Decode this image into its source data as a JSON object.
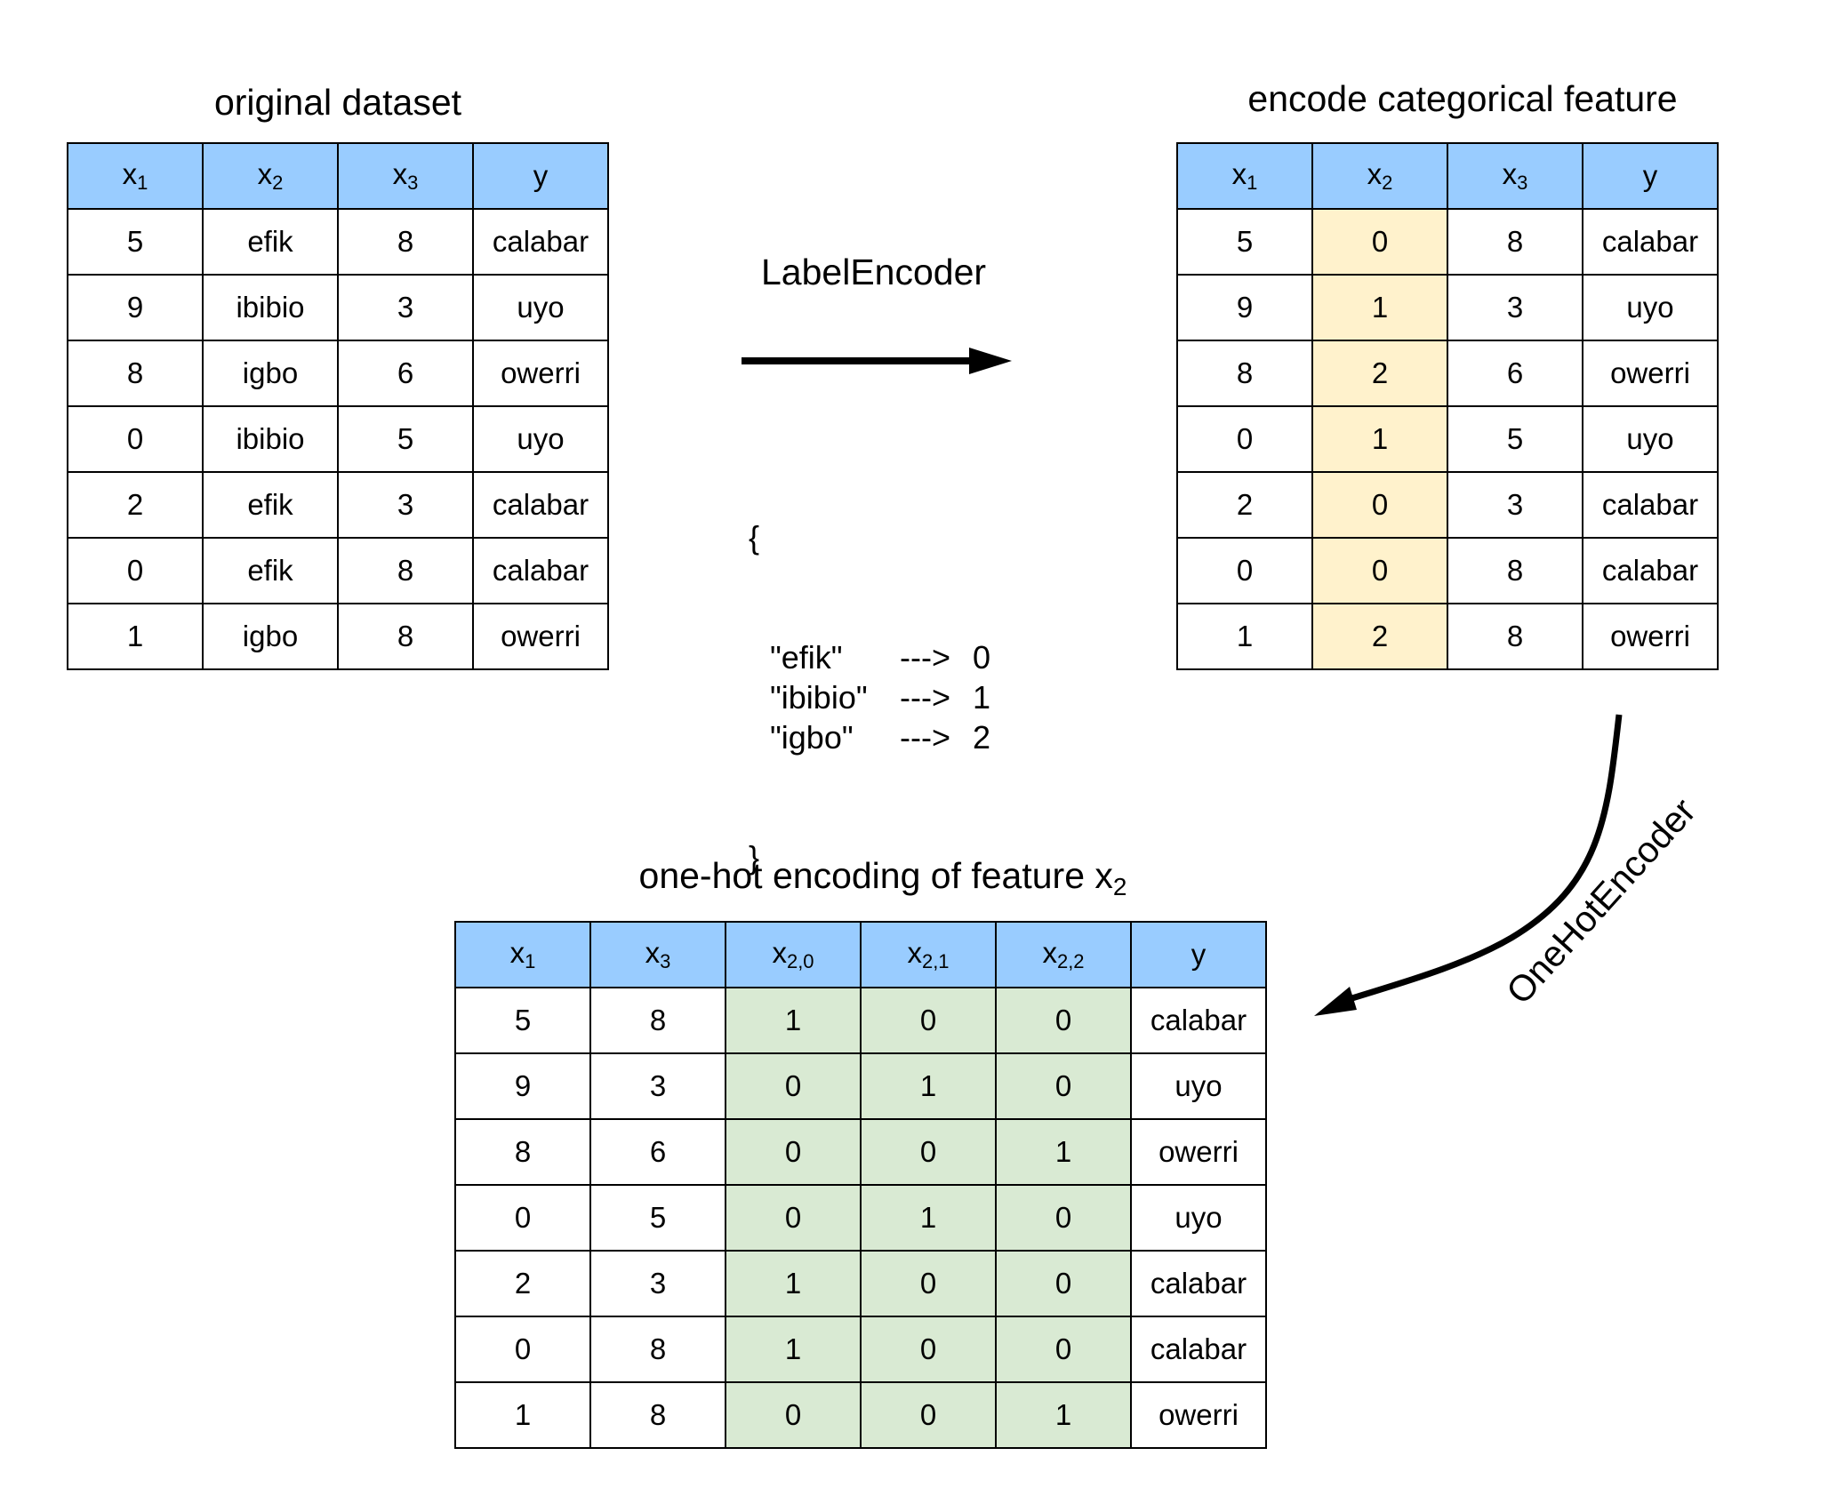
{
  "original": {
    "title": "original dataset",
    "headers": [
      {
        "base": "x",
        "sub": "1"
      },
      {
        "base": "x",
        "sub": "2"
      },
      {
        "base": "x",
        "sub": "3"
      },
      {
        "base": "y",
        "sub": ""
      }
    ],
    "rows": [
      [
        "5",
        "efik",
        "8",
        "calabar"
      ],
      [
        "9",
        "ibibio",
        "3",
        "uyo"
      ],
      [
        "8",
        "igbo",
        "6",
        "owerri"
      ],
      [
        "0",
        "ibibio",
        "5",
        "uyo"
      ],
      [
        "2",
        "efik",
        "3",
        "calabar"
      ],
      [
        "0",
        "efik",
        "8",
        "calabar"
      ],
      [
        "1",
        "igbo",
        "8",
        "owerri"
      ]
    ]
  },
  "label_encoder": {
    "label": "LabelEncoder",
    "open_brace": "{",
    "close_brace": "}",
    "mappings": [
      {
        "key": "\"efik\"",
        "arrow": "--->",
        "value": "0"
      },
      {
        "key": "\"ibibio\"",
        "arrow": "--->",
        "value": "1"
      },
      {
        "key": "\"igbo\"",
        "arrow": "--->",
        "value": "2"
      }
    ]
  },
  "encoded": {
    "title": "encode categorical feature",
    "headers": [
      {
        "base": "x",
        "sub": "1"
      },
      {
        "base": "x",
        "sub": "2"
      },
      {
        "base": "x",
        "sub": "3"
      },
      {
        "base": "y",
        "sub": ""
      }
    ],
    "highlight_column": 1,
    "highlight_color": "#fff2cc",
    "rows": [
      [
        "5",
        "0",
        "8",
        "calabar"
      ],
      [
        "9",
        "1",
        "3",
        "uyo"
      ],
      [
        "8",
        "2",
        "6",
        "owerri"
      ],
      [
        "0",
        "1",
        "5",
        "uyo"
      ],
      [
        "2",
        "0",
        "3",
        "calabar"
      ],
      [
        "0",
        "0",
        "8",
        "calabar"
      ],
      [
        "1",
        "2",
        "8",
        "owerri"
      ]
    ]
  },
  "one_hot_encoder": {
    "label": "OneHotEncoder"
  },
  "onehot": {
    "title": "one-hot encoding of feature ",
    "title_var": {
      "base": "x",
      "sub": "2"
    },
    "headers": [
      {
        "base": "x",
        "sub": "1"
      },
      {
        "base": "x",
        "sub": "3"
      },
      {
        "base": "x",
        "sub": "2,0"
      },
      {
        "base": "x",
        "sub": "2,1"
      },
      {
        "base": "x",
        "sub": "2,2"
      },
      {
        "base": "y",
        "sub": ""
      }
    ],
    "highlight_columns": [
      2,
      3,
      4
    ],
    "highlight_color": "#d9ead3",
    "rows": [
      [
        "5",
        "8",
        "1",
        "0",
        "0",
        "calabar"
      ],
      [
        "9",
        "3",
        "0",
        "1",
        "0",
        "uyo"
      ],
      [
        "8",
        "6",
        "0",
        "0",
        "1",
        "owerri"
      ],
      [
        "0",
        "5",
        "0",
        "1",
        "0",
        "uyo"
      ],
      [
        "2",
        "3",
        "1",
        "0",
        "0",
        "calabar"
      ],
      [
        "0",
        "8",
        "1",
        "0",
        "0",
        "calabar"
      ],
      [
        "1",
        "8",
        "0",
        "0",
        "1",
        "owerri"
      ]
    ]
  },
  "colors": {
    "header": "#99ccff",
    "border": "#000000"
  }
}
